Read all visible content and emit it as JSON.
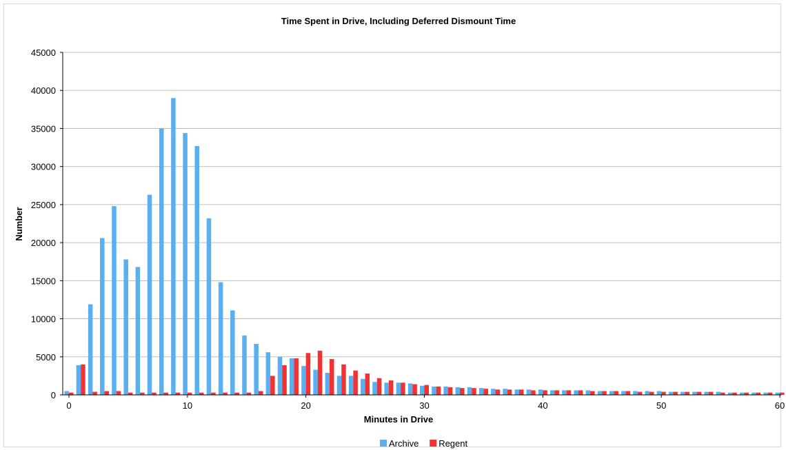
{
  "chart_data": {
    "type": "bar",
    "title": "Time Spent in Drive, Including Deferred Dismount Time",
    "xlabel": "Minutes in Drive",
    "ylabel": "Number",
    "ylim": [
      0,
      45000
    ],
    "yticks": [
      0,
      5000,
      10000,
      15000,
      20000,
      25000,
      30000,
      35000,
      40000,
      45000
    ],
    "xlim": [
      0,
      60
    ],
    "xticks": [
      0,
      10,
      20,
      30,
      40,
      50,
      60
    ],
    "grid": true,
    "legend_position": "bottom",
    "x": [
      0,
      1,
      2,
      3,
      4,
      5,
      6,
      7,
      8,
      9,
      10,
      11,
      12,
      13,
      14,
      15,
      16,
      17,
      18,
      19,
      20,
      21,
      22,
      23,
      24,
      25,
      26,
      27,
      28,
      29,
      30,
      31,
      32,
      33,
      34,
      35,
      36,
      37,
      38,
      39,
      40,
      41,
      42,
      43,
      44,
      45,
      46,
      47,
      48,
      49,
      50,
      51,
      52,
      53,
      54,
      55,
      56,
      57,
      58,
      59,
      60
    ],
    "series": [
      {
        "name": "Archive",
        "color": "#5aaff0",
        "values": [
          500,
          3900,
          11900,
          20600,
          24800,
          17800,
          16800,
          26300,
          35000,
          39000,
          34400,
          32700,
          23200,
          14800,
          11100,
          7800,
          6700,
          5600,
          5000,
          4800,
          3800,
          3300,
          2900,
          2500,
          2500,
          2100,
          1700,
          1600,
          1600,
          1500,
          1200,
          1100,
          1100,
          1000,
          1000,
          900,
          800,
          800,
          700,
          700,
          700,
          600,
          600,
          600,
          600,
          500,
          500,
          500,
          500,
          500,
          500,
          400,
          400,
          400,
          400,
          400,
          300,
          300,
          300,
          300,
          300
        ]
      },
      {
        "name": "Regent",
        "color": "#f03232",
        "values": [
          300,
          4000,
          400,
          500,
          500,
          300,
          300,
          300,
          300,
          300,
          300,
          300,
          300,
          300,
          300,
          300,
          500,
          2500,
          3900,
          4800,
          5500,
          5800,
          4700,
          4000,
          3200,
          2800,
          2200,
          1900,
          1600,
          1400,
          1300,
          1100,
          1000,
          900,
          900,
          800,
          700,
          700,
          700,
          600,
          600,
          600,
          600,
          600,
          500,
          500,
          500,
          500,
          400,
          400,
          400,
          400,
          400,
          400,
          400,
          300,
          300,
          300,
          300,
          300,
          300
        ]
      }
    ]
  }
}
